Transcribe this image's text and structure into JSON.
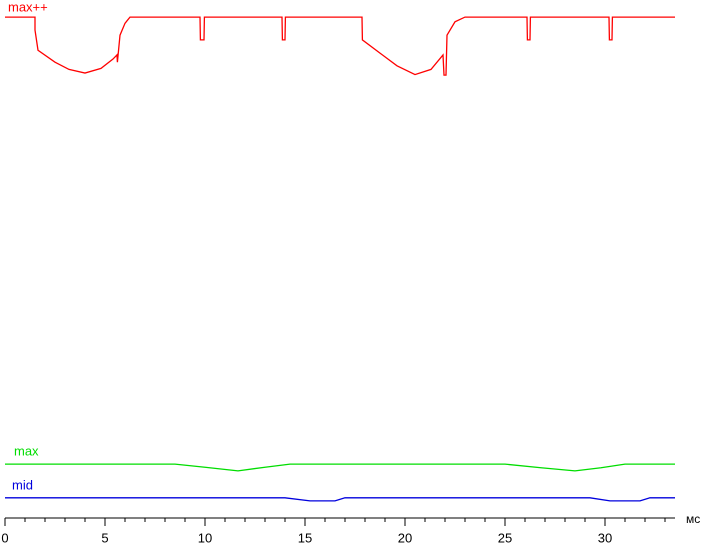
{
  "chart_data": {
    "type": "line",
    "x_unit": "мс",
    "xlim": [
      0,
      33.5
    ],
    "ylim": [
      0,
      100
    ],
    "xticks": [
      0,
      5,
      10,
      15,
      20,
      25,
      30
    ],
    "minor_xticks": [
      1,
      2,
      3,
      4,
      6,
      7,
      8,
      9,
      11,
      12,
      13,
      14,
      16,
      17,
      18,
      19,
      21,
      22,
      23,
      24,
      26,
      27,
      28,
      29,
      31,
      32,
      33
    ],
    "series": [
      {
        "name": "max++",
        "color": "#ff0000",
        "x": [
          0,
          1.5,
          1.5,
          1.65,
          2.5,
          3.2,
          4.0,
          4.8,
          5.4,
          5.6,
          5.62,
          5.75,
          6.0,
          6.25,
          9.75,
          9.77,
          9.95,
          9.97,
          13.85,
          13.87,
          14.0,
          14.02,
          17.85,
          17.87,
          18.8,
          19.6,
          20.5,
          21.3,
          21.9,
          21.95,
          22.05,
          22.1,
          22.5,
          23.0,
          26.1,
          26.12,
          26.25,
          26.27,
          30.2,
          30.22,
          30.35,
          30.37,
          33.5
        ],
        "values": [
          96.7,
          96.7,
          94.2,
          90.3,
          88.0,
          86.6,
          85.9,
          86.8,
          88.6,
          89.4,
          88.0,
          93.2,
          95.5,
          96.7,
          96.7,
          92.3,
          92.3,
          96.7,
          96.7,
          92.3,
          92.3,
          96.7,
          96.7,
          92.3,
          89.6,
          87.3,
          85.6,
          86.6,
          89.4,
          85.5,
          85.5,
          93.2,
          95.8,
          96.7,
          96.7,
          92.3,
          92.3,
          96.7,
          96.7,
          92.3,
          92.3,
          96.7,
          96.7
        ]
      },
      {
        "name": "max",
        "color": "#00dd00",
        "x": [
          0,
          8.5,
          10.0,
          11.65,
          13.0,
          14.25,
          25.0,
          26.8,
          28.5,
          29.8,
          31.0,
          33.5
        ],
        "values": [
          10.4,
          10.4,
          9.8,
          9.1,
          9.8,
          10.4,
          10.4,
          9.7,
          9.1,
          9.7,
          10.4,
          10.4
        ]
      },
      {
        "name": "mid",
        "color": "#0000dd",
        "x": [
          0,
          14.0,
          15.25,
          16.5,
          17.0,
          29.25,
          30.25,
          31.75,
          32.25,
          33.5
        ],
        "values": [
          3.9,
          3.9,
          3.3,
          3.3,
          3.9,
          3.9,
          3.3,
          3.3,
          3.9,
          3.9
        ]
      }
    ]
  }
}
